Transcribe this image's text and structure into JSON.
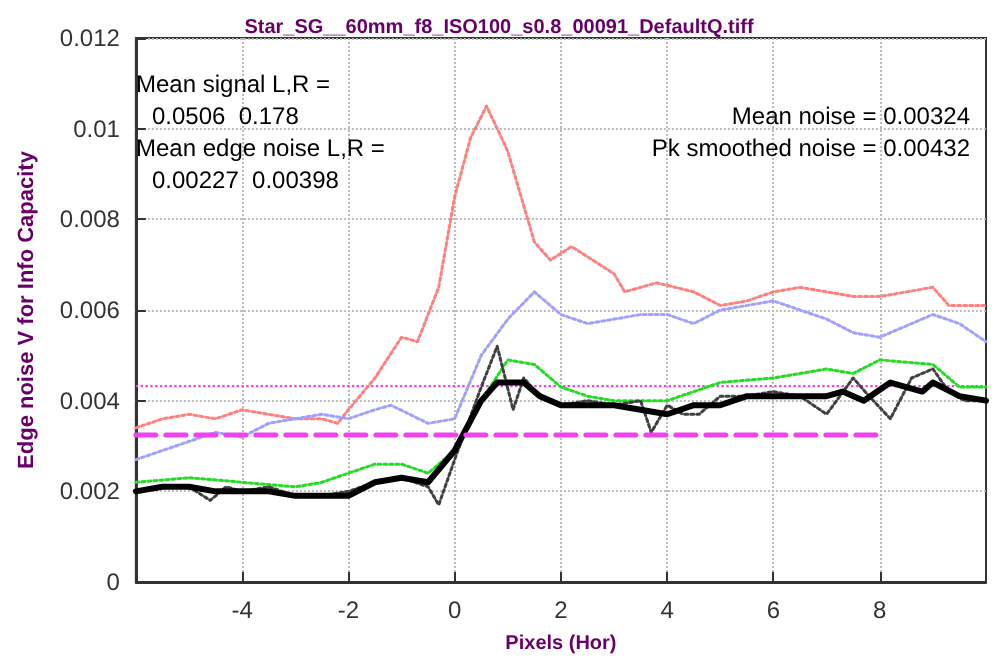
{
  "chart_data": {
    "type": "line",
    "title": "Star_SG__60mm_f8_ISO100_s0.8_00091_DefaultQ.tiff",
    "xlabel": "Pixels (Hor)",
    "ylabel": "Edge noise V for Info Capacity",
    "annotations": [
      "Mean signal L,R =",
      "0.0506  0.178",
      "Mean edge noise L,R =",
      "0.00227  0.00398",
      "Mean noise = 0.00324",
      "Pk smoothed noise = 0.00432"
    ],
    "xlim": [
      -6,
      10
    ],
    "xticks": [
      -4,
      -2,
      0,
      2,
      4,
      6,
      8
    ],
    "ylim": [
      0,
      0.012
    ],
    "yticks": [
      0,
      0.002,
      0.004,
      0.006,
      0.008,
      0.01,
      0.012
    ],
    "grid": true,
    "marker": "none",
    "series": [
      {
        "color": "#ff8080",
        "line_style": "dotted",
        "x": [
          -6,
          -5.5,
          -5,
          -4.5,
          -4,
          -3.5,
          -3,
          -2.5,
          -2.2,
          -2,
          -1.5,
          -1,
          -0.7,
          -0.3,
          0,
          0.3,
          0.6,
          1,
          1.5,
          1.8,
          2.2,
          3,
          3.2,
          3.8,
          4.5,
          5,
          5.5,
          6,
          6.5,
          7,
          7.5,
          8,
          9,
          9.3,
          10
        ],
        "values": [
          0.0034,
          0.0036,
          0.0037,
          0.0036,
          0.0038,
          0.0037,
          0.0036,
          0.0036,
          0.0035,
          0.0038,
          0.0045,
          0.0054,
          0.0053,
          0.0065,
          0.0085,
          0.0098,
          0.0105,
          0.0095,
          0.0075,
          0.0071,
          0.0074,
          0.0068,
          0.0064,
          0.0066,
          0.0064,
          0.0061,
          0.0062,
          0.0064,
          0.0065,
          0.0064,
          0.0063,
          0.0063,
          0.0065,
          0.0061,
          0.0061
        ]
      },
      {
        "color": "#a0a0ff",
        "line_style": "dotted",
        "x": [
          -6,
          -5,
          -4.5,
          -4,
          -3.5,
          -3,
          -2.5,
          -2,
          -1.5,
          -1.2,
          -0.5,
          0,
          0.5,
          1,
          1.5,
          2,
          2.5,
          3,
          3.5,
          4,
          4.5,
          5,
          6,
          6.5,
          7,
          7.5,
          8,
          9,
          9.5,
          10
        ],
        "values": [
          0.0027,
          0.0031,
          0.0033,
          0.0032,
          0.0035,
          0.0036,
          0.0037,
          0.0036,
          0.0038,
          0.0039,
          0.0035,
          0.0036,
          0.005,
          0.0058,
          0.0064,
          0.0059,
          0.0057,
          0.0058,
          0.0059,
          0.0059,
          0.0057,
          0.006,
          0.0062,
          0.006,
          0.0058,
          0.0055,
          0.0054,
          0.0059,
          0.0057,
          0.0053
        ]
      },
      {
        "color": "#22dd22",
        "line_style": "dotted",
        "x": [
          -6,
          -5,
          -4,
          -3,
          -2.5,
          -2,
          -1.5,
          -1,
          -0.5,
          0,
          0.5,
          1,
          1.5,
          2,
          2.5,
          3,
          4,
          4.5,
          5,
          6,
          7,
          7.5,
          8,
          9,
          9.5,
          10
        ],
        "values": [
          0.0022,
          0.0023,
          0.0022,
          0.0021,
          0.0022,
          0.0024,
          0.0026,
          0.0026,
          0.0024,
          0.0029,
          0.004,
          0.0049,
          0.0048,
          0.0043,
          0.0041,
          0.004,
          0.004,
          0.0042,
          0.0044,
          0.0045,
          0.0047,
          0.0046,
          0.0049,
          0.0048,
          0.0043,
          0.0043
        ]
      },
      {
        "color": "#404040",
        "line_style": "dotted",
        "x": [
          -6,
          -5.5,
          -5,
          -4.6,
          -4.3,
          -4,
          -3.5,
          -3,
          -2.5,
          -2,
          -1.5,
          -1,
          -0.5,
          -0.3,
          0,
          0.5,
          0.8,
          1.1,
          1.3,
          1.6,
          2,
          2.5,
          3,
          3.5,
          3.7,
          4,
          4.3,
          4.6,
          5,
          5.5,
          6,
          6.5,
          7,
          7.5,
          7.8,
          8.2,
          8.6,
          9,
          9.3,
          9.6,
          10
        ],
        "values": [
          0.002,
          0.0021,
          0.0021,
          0.0018,
          0.0021,
          0.002,
          0.0021,
          0.0019,
          0.0019,
          0.002,
          0.0022,
          0.0023,
          0.0021,
          0.0017,
          0.0027,
          0.0043,
          0.0052,
          0.0038,
          0.0045,
          0.0041,
          0.0039,
          0.004,
          0.0039,
          0.004,
          0.0033,
          0.0039,
          0.0037,
          0.0037,
          0.0041,
          0.0041,
          0.0042,
          0.0041,
          0.0037,
          0.0045,
          0.0041,
          0.0036,
          0.0045,
          0.0047,
          0.0042,
          0.004,
          0.004
        ]
      },
      {
        "color": "#000000",
        "line_style": "solid",
        "x": [
          -6,
          -5.5,
          -5,
          -4.5,
          -4,
          -3.5,
          -3,
          -2.5,
          -2,
          -1.5,
          -1,
          -0.5,
          0,
          0.5,
          0.8,
          1.3,
          1.6,
          2,
          3,
          3.5,
          4,
          4.5,
          5,
          5.5,
          6,
          7,
          7.3,
          7.7,
          8.2,
          8.8,
          9,
          9.5,
          10
        ],
        "values": [
          0.002,
          0.0021,
          0.0021,
          0.002,
          0.002,
          0.002,
          0.0019,
          0.0019,
          0.0019,
          0.0022,
          0.0023,
          0.0022,
          0.0029,
          0.004,
          0.0044,
          0.0044,
          0.0041,
          0.0039,
          0.0039,
          0.0038,
          0.0037,
          0.0039,
          0.0039,
          0.0041,
          0.0041,
          0.0041,
          0.0042,
          0.004,
          0.0044,
          0.0042,
          0.0044,
          0.0041,
          0.004
        ]
      },
      {
        "color": "#ee44ee",
        "line_style": "dashed",
        "x": [
          -6,
          8
        ],
        "values": [
          0.00324,
          0.00324
        ]
      }
    ],
    "ref_lines": [
      {
        "axis": "y",
        "value": 0.00432,
        "color": "#ee44ee",
        "line_style": "dotted"
      }
    ]
  }
}
